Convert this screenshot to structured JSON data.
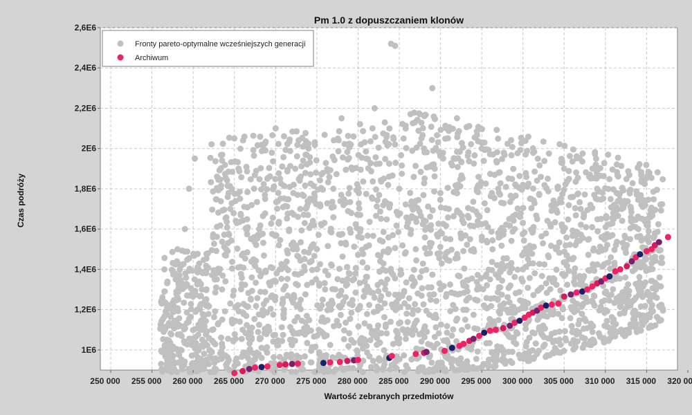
{
  "chart_data": {
    "type": "scatter",
    "title": "Pm 1.0 z dopuszczaniem klonów",
    "xlabel": "Wartość zebranych przedmiotów",
    "ylabel": "Czas podróży",
    "xlim": [
      250000,
      320000
    ],
    "ylim": [
      900000,
      2600000
    ],
    "x_ticks": [
      250000,
      255000,
      260000,
      265000,
      270000,
      275000,
      280000,
      285000,
      290000,
      295000,
      300000,
      305000,
      310000,
      315000,
      320000
    ],
    "x_tick_labels": [
      "250 000",
      "255 000",
      "260 000",
      "265 000",
      "270 000",
      "275 000",
      "280 000",
      "285 000",
      "290 000",
      "295 000",
      "300 000",
      "305 000",
      "310 000",
      "315 000",
      "320 000"
    ],
    "y_ticks": [
      1000000,
      1200000,
      1400000,
      1600000,
      1800000,
      2000000,
      2200000,
      2400000,
      2600000
    ],
    "y_tick_labels": [
      "1E6",
      "1,2E6",
      "1,4E6",
      "1,6E6",
      "1,8E6",
      "2E6",
      "2,2E6",
      "2,4E6",
      "2,6E6"
    ],
    "grid": true,
    "legend_position": "top-left",
    "series": [
      {
        "name": "Fronty pareto-optymalne wcześniejszych generacji",
        "color": "#c0c0c0",
        "description": "dense cloud of points",
        "points": [
          [
            256200,
            990000
          ],
          [
            256800,
            1050000
          ],
          [
            257500,
            1120000
          ],
          [
            258200,
            1250000
          ],
          [
            258600,
            1420000
          ],
          [
            259000,
            1600000
          ],
          [
            259500,
            1800000
          ],
          [
            260200,
            1950000
          ],
          [
            260500,
            1200000
          ],
          [
            261000,
            1100000
          ],
          [
            262000,
            1000000
          ],
          [
            263000,
            950000
          ],
          [
            263500,
            1300000
          ],
          [
            264000,
            1500000
          ],
          [
            264500,
            1700000
          ],
          [
            265000,
            2050000
          ],
          [
            265500,
            1900000
          ],
          [
            266000,
            1100000
          ],
          [
            267000,
            1250000
          ],
          [
            268000,
            1600000
          ],
          [
            269000,
            1850000
          ],
          [
            270000,
            2100000
          ],
          [
            270500,
            1400000
          ],
          [
            271000,
            1200000
          ],
          [
            272000,
            1050000
          ],
          [
            273000,
            1700000
          ],
          [
            274000,
            2000000
          ],
          [
            275000,
            1500000
          ],
          [
            276000,
            1300000
          ],
          [
            277000,
            1800000
          ],
          [
            278000,
            2150000
          ],
          [
            279000,
            1600000
          ],
          [
            280000,
            1200000
          ],
          [
            281000,
            1950000
          ],
          [
            282000,
            2200000
          ],
          [
            283000,
            1400000
          ],
          [
            284000,
            2520000
          ],
          [
            284500,
            2510000
          ],
          [
            285000,
            1800000
          ],
          [
            286000,
            1100000
          ],
          [
            287000,
            1500000
          ],
          [
            288000,
            2000000
          ],
          [
            289000,
            2300000
          ],
          [
            290000,
            1300000
          ],
          [
            291000,
            1700000
          ],
          [
            292000,
            2150000
          ],
          [
            293000,
            1150000
          ],
          [
            294000,
            1500000
          ],
          [
            295000,
            2000000
          ],
          [
            296000,
            1350000
          ],
          [
            297000,
            1800000
          ],
          [
            298000,
            1200000
          ],
          [
            299000,
            1600000
          ],
          [
            300000,
            1400000
          ],
          [
            301000,
            1750000
          ],
          [
            302000,
            1300000
          ],
          [
            303000,
            1850000
          ],
          [
            304000,
            1500000
          ],
          [
            305000,
            1900000
          ],
          [
            306000,
            1450000
          ],
          [
            307000,
            1700000
          ],
          [
            308000,
            1550000
          ],
          [
            309000,
            1800000
          ],
          [
            310000,
            1500000
          ],
          [
            311000,
            1650000
          ],
          [
            312000,
            1700000
          ],
          [
            313000,
            1550000
          ],
          [
            314000,
            1600000
          ],
          [
            315000,
            1620000
          ],
          [
            316000,
            1580000
          ]
        ]
      },
      {
        "name": "Archiwum",
        "color": "#ee2266",
        "description": "Pareto front points, colored from dark navy to pink",
        "points": [
          [
            265000,
            885000
          ],
          [
            266000,
            895000
          ],
          [
            266800,
            905000
          ],
          [
            267500,
            912000
          ],
          [
            268300,
            915000
          ],
          [
            269000,
            918000
          ],
          [
            270500,
            925000
          ],
          [
            271200,
            928000
          ],
          [
            272000,
            930000
          ],
          [
            272700,
            932000
          ],
          [
            275800,
            935000
          ],
          [
            276600,
            938000
          ],
          [
            277800,
            940000
          ],
          [
            278700,
            945000
          ],
          [
            279500,
            948000
          ],
          [
            280000,
            950000
          ],
          [
            283800,
            960000
          ],
          [
            284100,
            970000
          ],
          [
            287000,
            980000
          ],
          [
            288000,
            985000
          ],
          [
            288300,
            990000
          ],
          [
            290500,
            995000
          ],
          [
            291400,
            1010000
          ],
          [
            292300,
            1020000
          ],
          [
            292800,
            1030000
          ],
          [
            293500,
            1045000
          ],
          [
            294000,
            1055000
          ],
          [
            294700,
            1070000
          ],
          [
            295300,
            1085000
          ],
          [
            296000,
            1095000
          ],
          [
            296700,
            1100000
          ],
          [
            297600,
            1108000
          ],
          [
            298400,
            1120000
          ],
          [
            299000,
            1135000
          ],
          [
            299600,
            1145000
          ],
          [
            300200,
            1160000
          ],
          [
            300700,
            1175000
          ],
          [
            301200,
            1185000
          ],
          [
            301700,
            1195000
          ],
          [
            302200,
            1210000
          ],
          [
            302800,
            1220000
          ],
          [
            303500,
            1225000
          ],
          [
            304300,
            1230000
          ],
          [
            305000,
            1265000
          ],
          [
            305800,
            1275000
          ],
          [
            306500,
            1285000
          ],
          [
            307200,
            1290000
          ],
          [
            307800,
            1300000
          ],
          [
            308400,
            1315000
          ],
          [
            309000,
            1330000
          ],
          [
            309500,
            1340000
          ],
          [
            310000,
            1355000
          ],
          [
            310500,
            1365000
          ],
          [
            311200,
            1390000
          ],
          [
            311800,
            1400000
          ],
          [
            312600,
            1415000
          ],
          [
            313200,
            1440000
          ],
          [
            313700,
            1460000
          ],
          [
            314200,
            1475000
          ],
          [
            315000,
            1490000
          ],
          [
            315600,
            1500000
          ],
          [
            316000,
            1520000
          ],
          [
            316500,
            1535000
          ],
          [
            317600,
            1560000
          ]
        ]
      }
    ]
  }
}
